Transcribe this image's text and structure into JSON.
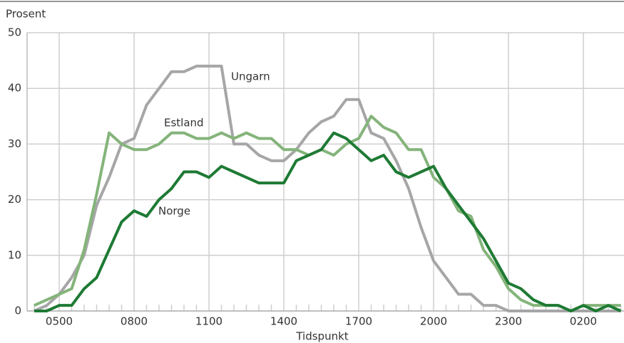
{
  "chart_data": {
    "type": "line",
    "y_label": "Prosent",
    "x_label": "Tidspunkt",
    "categories": [
      null,
      null,
      "0500",
      null,
      null,
      null,
      null,
      null,
      "0800",
      null,
      null,
      null,
      null,
      null,
      "1100",
      null,
      null,
      null,
      null,
      null,
      "1400",
      null,
      null,
      null,
      null,
      null,
      "1700",
      null,
      null,
      null,
      null,
      null,
      "2000",
      null,
      null,
      null,
      null,
      null,
      "2300",
      null,
      null,
      null,
      null,
      null,
      "0200",
      null,
      null,
      null
    ],
    "series": [
      {
        "name": "Ungarn",
        "color": "#a6a6a8",
        "values": [
          0,
          1,
          3,
          6,
          10,
          19,
          24,
          30,
          31,
          37,
          40,
          43,
          43,
          44,
          44,
          44,
          30,
          30,
          28,
          27,
          27,
          29,
          32,
          34,
          35,
          38,
          38,
          32,
          31,
          27,
          22,
          15,
          9,
          6,
          3,
          3,
          1,
          1,
          0,
          0,
          0,
          0,
          0,
          0,
          0,
          0,
          0,
          0
        ]
      },
      {
        "name": "Estland",
        "color": "#84b47a",
        "values": [
          1,
          2,
          3,
          4,
          11,
          21,
          32,
          30,
          29,
          29,
          30,
          32,
          32,
          31,
          31,
          32,
          31,
          32,
          31,
          31,
          29,
          29,
          28,
          29,
          28,
          30,
          31,
          35,
          33,
          32,
          29,
          29,
          24,
          22,
          18,
          17,
          11,
          8,
          4,
          2,
          1,
          1,
          1,
          0,
          1,
          1,
          1,
          1
        ]
      },
      {
        "name": "Norge",
        "color": "#1e7a34",
        "values": [
          0,
          0,
          1,
          1,
          4,
          6,
          11,
          16,
          18,
          17,
          20,
          22,
          25,
          25,
          24,
          26,
          25,
          24,
          23,
          23,
          23,
          27,
          28,
          29,
          32,
          31,
          29,
          27,
          28,
          25,
          24,
          25,
          26,
          22,
          19,
          16,
          13,
          9,
          5,
          4,
          2,
          1,
          1,
          0,
          1,
          0,
          1,
          0
        ]
      }
    ],
    "ylim": [
      0,
      50
    ],
    "yticks": [
      0,
      10,
      20,
      30,
      40,
      50
    ],
    "grid": true
  }
}
